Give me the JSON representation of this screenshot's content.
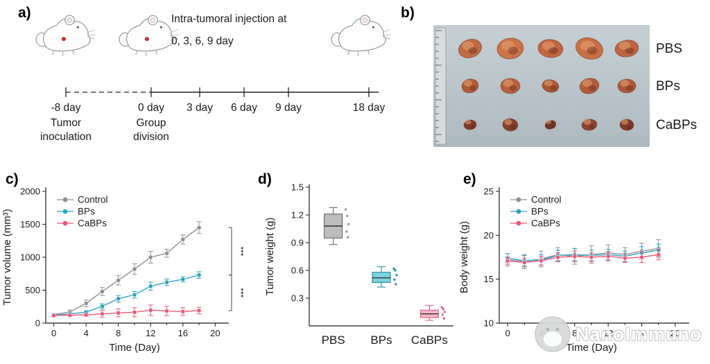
{
  "panels": {
    "a": {
      "label": "a)",
      "injection_line1": "Intra-tumoral injection at",
      "injection_line2": "0, 3, 6, 9 day",
      "timeline": [
        {
          "label": "-8 day",
          "sublabel": [
            "Tumor",
            "inoculation"
          ]
        },
        {
          "label": "0 day",
          "sublabel": [
            "Group",
            "division"
          ]
        },
        {
          "label": "3 day"
        },
        {
          "label": "6 day"
        },
        {
          "label": "9 day"
        },
        {
          "label": "18 day"
        }
      ]
    },
    "b": {
      "label": "b)",
      "rows": [
        {
          "label": "PBS",
          "tumor_count": 5,
          "size": "large"
        },
        {
          "label": "BPs",
          "tumor_count": 5,
          "size": "medium"
        },
        {
          "label": "CaBPs",
          "tumor_count": 5,
          "size": "small"
        }
      ]
    },
    "c": {
      "label": "c)"
    },
    "d": {
      "label": "d)"
    },
    "e": {
      "label": "e)"
    }
  },
  "watermark": {
    "text": "NanoImmuno"
  },
  "chart_data": [
    {
      "id": "tumor-volume",
      "type": "line",
      "ylabel": "Tumor volume (mm³)",
      "xlabel": "Time (Day)",
      "xlim": [
        -1,
        21
      ],
      "ylim": [
        0,
        2000
      ],
      "xticks": [
        0,
        4,
        8,
        12,
        16,
        20
      ],
      "yticks": [
        0,
        500,
        1000,
        1500,
        2000
      ],
      "x": [
        0,
        2,
        4,
        6,
        8,
        10,
        12,
        14,
        16,
        18
      ],
      "series": [
        {
          "name": "Control",
          "color": "#8f8f8f",
          "values": [
            130,
            170,
            300,
            480,
            650,
            820,
            1000,
            1060,
            1270,
            1450
          ],
          "err": [
            20,
            30,
            50,
            60,
            70,
            80,
            90,
            60,
            70,
            90
          ]
        },
        {
          "name": "BPs",
          "color": "#2ba3bd",
          "values": [
            120,
            140,
            165,
            255,
            370,
            430,
            560,
            620,
            665,
            730
          ],
          "err": [
            20,
            25,
            30,
            40,
            50,
            50,
            60,
            50,
            40,
            50
          ]
        },
        {
          "name": "CaBPs",
          "color": "#ef5579",
          "values": [
            115,
            120,
            125,
            140,
            155,
            165,
            195,
            185,
            175,
            190
          ],
          "err": [
            15,
            20,
            25,
            50,
            60,
            70,
            80,
            70,
            60,
            50
          ]
        }
      ],
      "legend_position": "top-left",
      "significance": [
        {
          "pair": [
            0,
            1
          ],
          "label": "***"
        },
        {
          "pair": [
            1,
            2
          ],
          "label": "***"
        }
      ]
    },
    {
      "id": "tumor-weight",
      "type": "box",
      "ylabel": "Tumor weight (g)",
      "ylim": [
        0,
        1.5
      ],
      "yticks": [
        0.3,
        0.6,
        0.9,
        1.2,
        1.5
      ],
      "categories": [
        "PBS",
        "BPs",
        "CaBPs"
      ],
      "boxes": [
        {
          "label": "PBS",
          "fill": "#bdbdbd",
          "stroke": "#6f6f6f",
          "dot": "#9a9a9a",
          "lo": 0.88,
          "q1": 0.95,
          "median": 1.08,
          "q3": 1.21,
          "hi": 1.28,
          "points": [
            0.96,
            1.02,
            1.1,
            1.19,
            1.26
          ]
        },
        {
          "label": "BPs",
          "fill": "#7fd2de",
          "stroke": "#2c94a6",
          "dot": "#2c94a6",
          "lo": 0.42,
          "q1": 0.47,
          "median": 0.52,
          "q3": 0.58,
          "hi": 0.64,
          "points": [
            0.45,
            0.5,
            0.55,
            0.6,
            0.62
          ]
        },
        {
          "label": "CaBPs",
          "fill": "#f7b6c6",
          "stroke": "#e2698c",
          "dot": "#e2698c",
          "lo": 0.06,
          "q1": 0.09,
          "median": 0.13,
          "q3": 0.17,
          "hi": 0.22,
          "points": [
            0.08,
            0.12,
            0.15,
            0.18,
            0.2
          ]
        }
      ]
    },
    {
      "id": "body-weight",
      "type": "line",
      "ylabel": "Body weight (g)",
      "xlabel": "Time (Day)",
      "xlim": [
        -1,
        21
      ],
      "ylim": [
        10,
        25
      ],
      "xticks": [
        0,
        4,
        8,
        12,
        16,
        20
      ],
      "yticks": [
        10,
        15,
        20,
        25
      ],
      "x": [
        0,
        2,
        4,
        6,
        8,
        10,
        12,
        14,
        16,
        18
      ],
      "series": [
        {
          "name": "Control",
          "color": "#8f8f8f",
          "values": [
            17.2,
            17.0,
            17.3,
            17.8,
            17.6,
            17.8,
            18.0,
            17.8,
            18.2,
            18.5
          ],
          "err": [
            0.7,
            0.8,
            0.9,
            0.8,
            0.9,
            1.0,
            0.9,
            0.8,
            0.9,
            1.0
          ]
        },
        {
          "name": "BPs",
          "color": "#2ba3bd",
          "values": [
            17.4,
            17.1,
            17.2,
            17.7,
            17.8,
            17.7,
            17.8,
            17.6,
            18.0,
            18.3
          ],
          "err": [
            0.5,
            0.6,
            0.6,
            0.6,
            0.7,
            0.6,
            0.6,
            0.6,
            0.7,
            0.7
          ]
        },
        {
          "name": "CaBPs",
          "color": "#ef5579",
          "values": [
            17.1,
            16.9,
            17.1,
            17.5,
            17.6,
            17.5,
            17.6,
            17.4,
            17.5,
            17.8
          ],
          "err": [
            0.4,
            0.5,
            0.5,
            0.5,
            0.6,
            0.5,
            0.5,
            0.5,
            0.6,
            0.6
          ]
        }
      ],
      "legend_position": "top-left"
    }
  ]
}
